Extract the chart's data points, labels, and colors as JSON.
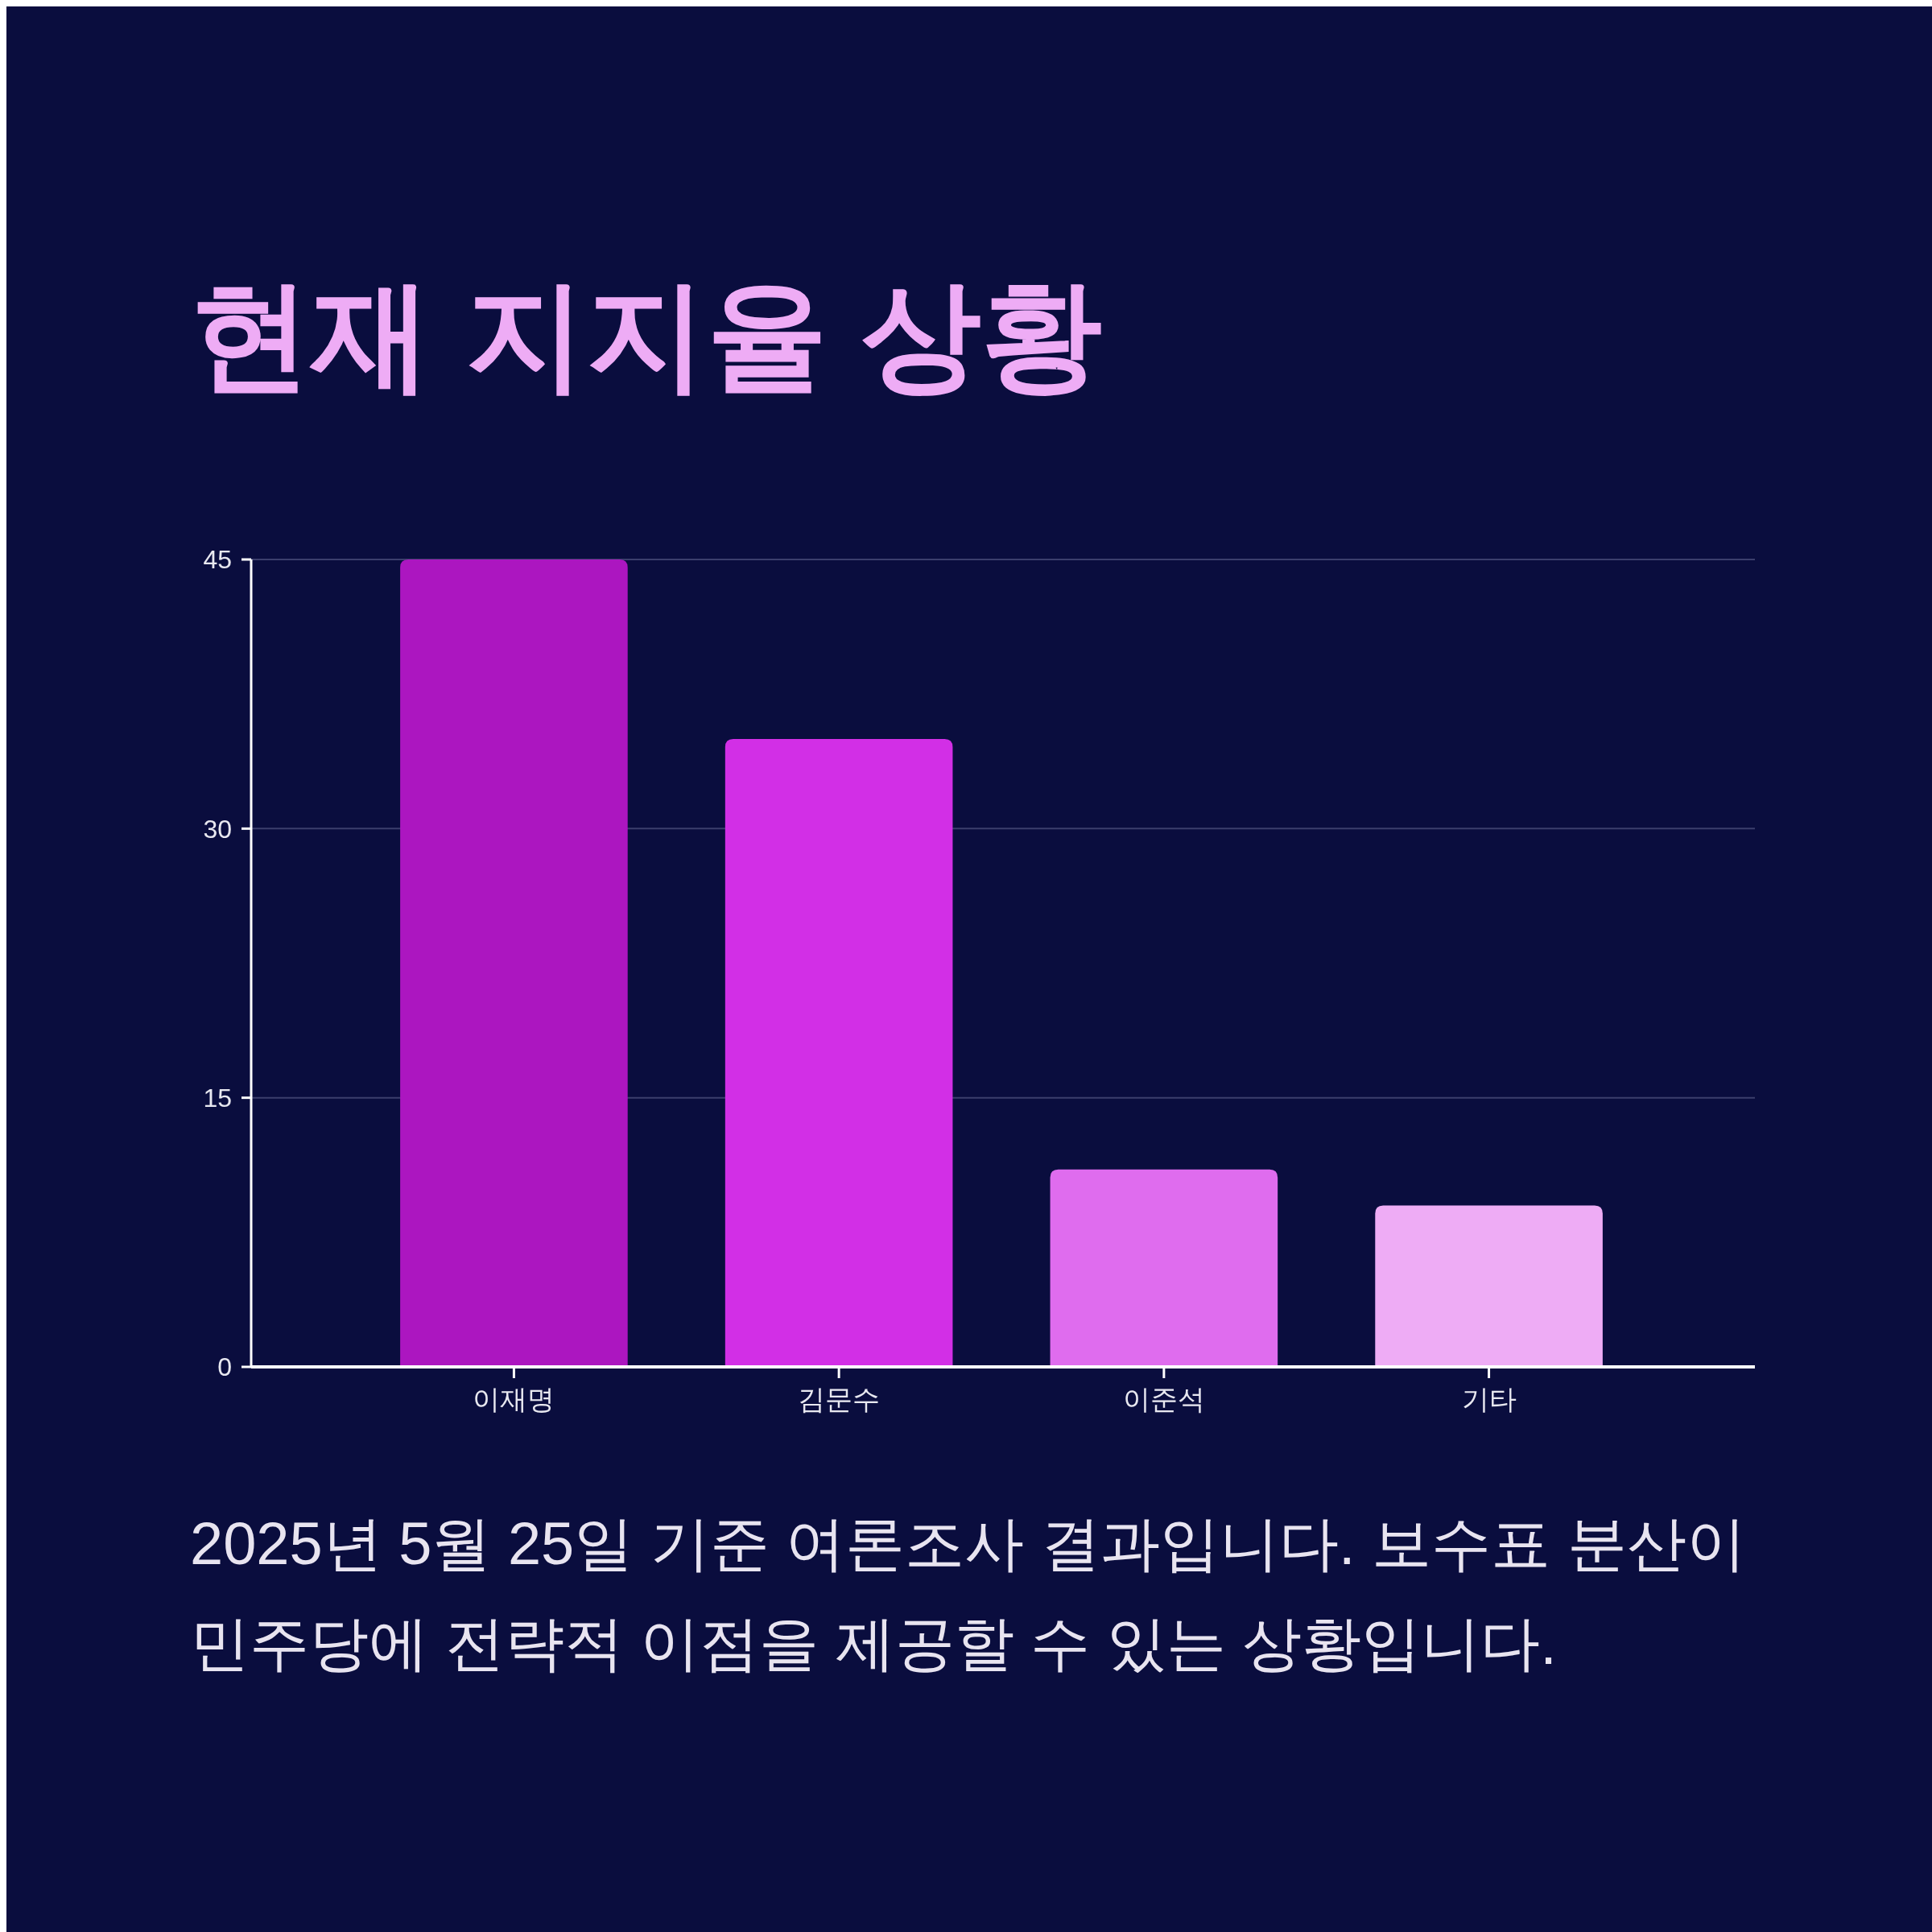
{
  "chart_data": {
    "type": "bar",
    "title": "현재 지지율 상황",
    "categories": [
      "이재명",
      "김문수",
      "이준석",
      "기타"
    ],
    "values": [
      45,
      35,
      11,
      9
    ],
    "colors": [
      "#ac16c0",
      "#d22fe6",
      "#df6cee",
      "#eeacf5"
    ],
    "ylim": [
      0,
      45
    ],
    "yticks": [
      0,
      15,
      30,
      45
    ],
    "grid": "y",
    "annotations": [
      "2025년 5월 25일 기준 여론조사 결과입니다. 보수표 분산이 민주당에 전략적 이점을 제공할 수 있는 상황입니다."
    ]
  }
}
